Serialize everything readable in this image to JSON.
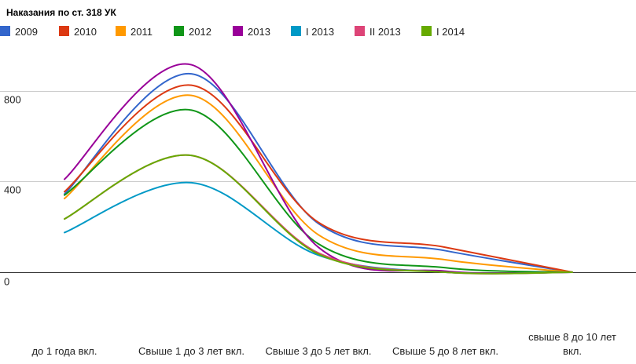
{
  "chart_data": {
    "type": "line",
    "title": "Наказания по ст. 318 УК",
    "xlabel": "",
    "ylabel": "",
    "categories": [
      [
        "до 1 года вкл."
      ],
      [
        "Свыше 1 до 3 лет вкл."
      ],
      [
        "Свыше 3 до 5 лет вкл."
      ],
      [
        "Свыше 5 до 8 лет вкл."
      ],
      [
        "свыше 8 до 10 лет",
        "вкл."
      ]
    ],
    "ylim": [
      -300,
      1000
    ],
    "yticks": [
      0,
      400,
      800
    ],
    "grid": true,
    "legend": "top",
    "series": [
      {
        "name": "2009",
        "color": "#3366cc",
        "values": [
          345,
          875,
          215,
          95,
          0
        ]
      },
      {
        "name": "2010",
        "color": "#dc3912",
        "values": [
          355,
          825,
          220,
          110,
          0
        ]
      },
      {
        "name": "2011",
        "color": "#ff9900",
        "values": [
          325,
          780,
          165,
          55,
          0
        ]
      },
      {
        "name": "2012",
        "color": "#109618",
        "values": [
          340,
          715,
          125,
          20,
          0
        ]
      },
      {
        "name": "2013",
        "color": "#990099",
        "values": [
          410,
          915,
          110,
          5,
          0
        ]
      },
      {
        "name": "I 2013",
        "color": "#0099c6",
        "values": [
          175,
          395,
          75,
          0,
          0
        ]
      },
      {
        "name": "II 2013",
        "color": "#dd4477",
        "values": [
          235,
          515,
          85,
          0,
          0
        ]
      },
      {
        "name": "I 2014",
        "color": "#66aa00",
        "values": [
          235,
          515,
          80,
          0,
          0
        ]
      }
    ]
  }
}
